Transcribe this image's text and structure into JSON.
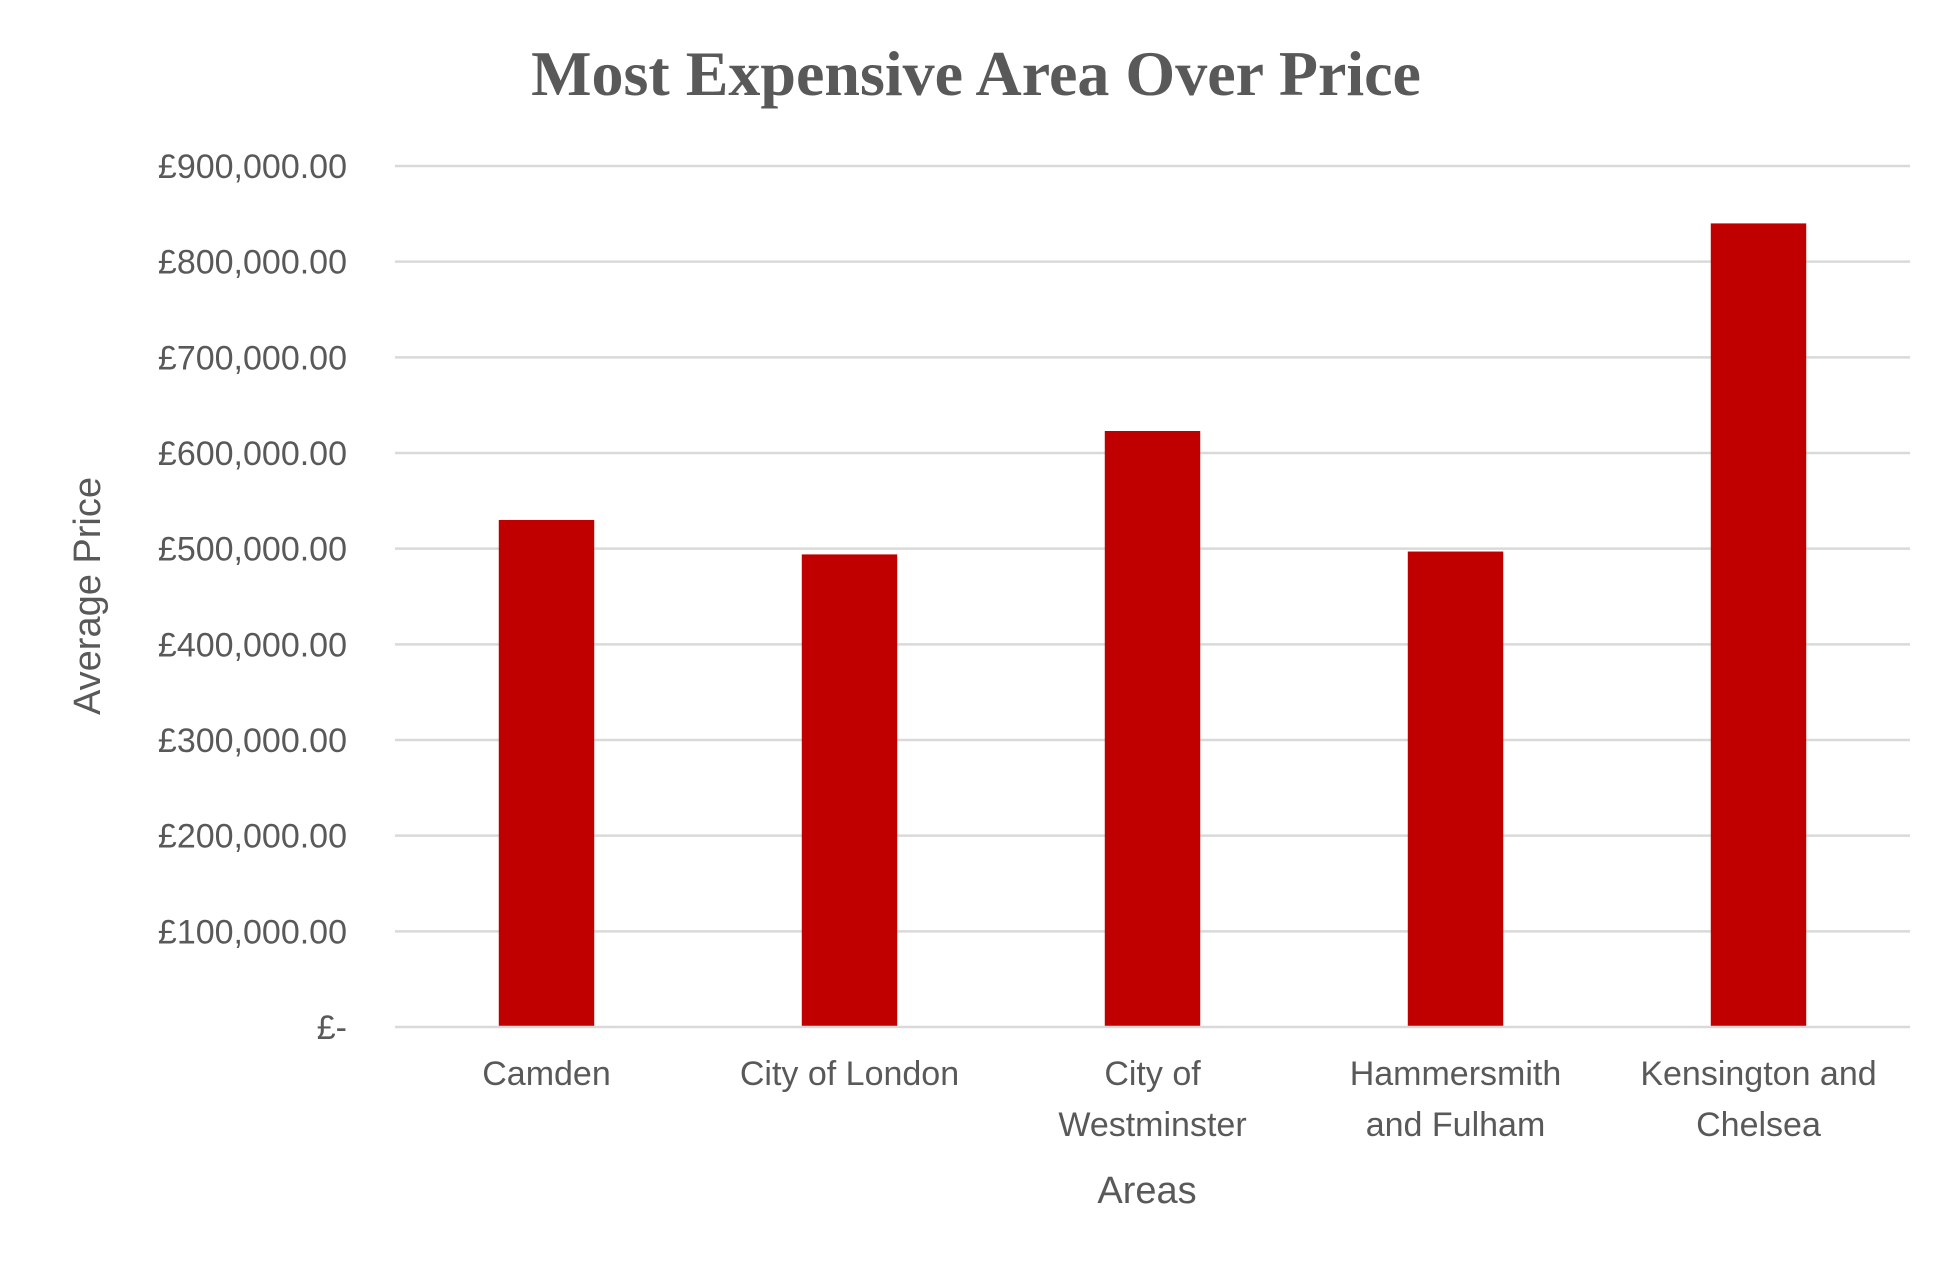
{
  "chart_data": {
    "type": "bar",
    "title": "Most Expensive Area Over Price",
    "xlabel": "Areas",
    "ylabel": "Average Price",
    "categories": [
      [
        "Camden"
      ],
      [
        "City of London"
      ],
      [
        "City of",
        "Westminster"
      ],
      [
        "Hammersmith",
        "and Fulham"
      ],
      [
        "Kensington and",
        "Chelsea"
      ]
    ],
    "values": [
      530000,
      494000,
      623000,
      497000,
      840000
    ],
    "ylim": [
      0,
      900000
    ],
    "yticks": [
      {
        "value": 900000,
        "label": "£900,000.00"
      },
      {
        "value": 800000,
        "label": "£800,000.00"
      },
      {
        "value": 700000,
        "label": "£700,000.00"
      },
      {
        "value": 600000,
        "label": "£600,000.00"
      },
      {
        "value": 500000,
        "label": "£500,000.00"
      },
      {
        "value": 400000,
        "label": "£400,000.00"
      },
      {
        "value": 300000,
        "label": "£300,000.00"
      },
      {
        "value": 200000,
        "label": "£200,000.00"
      },
      {
        "value": 100000,
        "label": "£100,000.00"
      },
      {
        "value": 0,
        "label": "£-"
      }
    ],
    "grid": true,
    "legend": "none",
    "bar_color": "#c00000"
  }
}
